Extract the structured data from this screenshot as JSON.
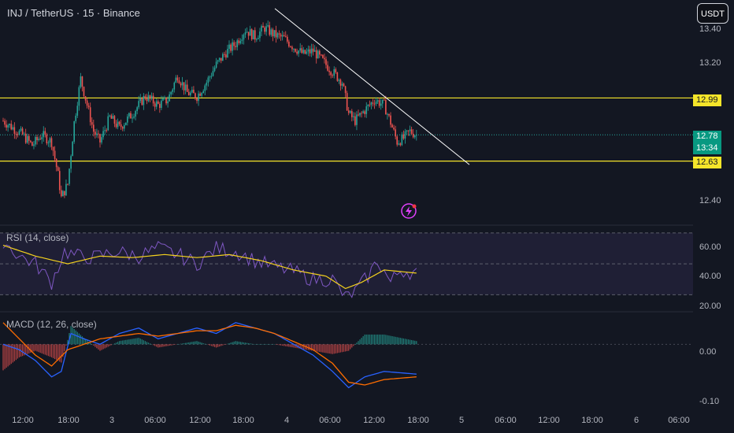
{
  "header": {
    "title": "INJ / TetherUS · 15 · Binance"
  },
  "currency_button": {
    "label": "USDT"
  },
  "price_axis": {
    "ticks": [
      "13.40",
      "13.20",
      "12.40"
    ]
  },
  "price_tags": {
    "resistance": "12.99",
    "last_price": "12.78",
    "countdown": "13:34",
    "support": "12.63"
  },
  "rsi_panel": {
    "label": "RSI (14, close)",
    "ticks": [
      "60.00",
      "40.00",
      "20.00"
    ]
  },
  "macd_panel": {
    "label": "MACD (12, 26, close)",
    "ticks": [
      "0.00",
      "-0.10"
    ]
  },
  "time_axis": {
    "ticks": [
      "12:00",
      "18:00",
      "3",
      "06:00",
      "12:00",
      "18:00",
      "4",
      "06:00",
      "12:00",
      "18:00",
      "5",
      "06:00",
      "12:00",
      "18:00",
      "6",
      "06:00"
    ]
  },
  "colors": {
    "background": "#131722",
    "up_candle": "#26a69a",
    "down_candle": "#ef5350",
    "horizontal_line": "#f5e52a",
    "trendline": "#ffffff",
    "rsi_line": "#7e57c2",
    "rsi_ma": "#f5d21e",
    "macd_line": "#2962ff",
    "signal_line": "#ff6d00"
  },
  "chart_data": {
    "type": "candlestick",
    "symbol": "INJ / TetherUS",
    "interval": "15",
    "exchange": "Binance",
    "horizontal_levels": [
      12.99,
      12.63
    ],
    "last_price": 12.78,
    "price_range": [
      12.35,
      13.45
    ],
    "trendline": {
      "from": {
        "time_index": 0,
        "price": 13.5
      },
      "to": {
        "time_index": 1,
        "price": 12.61
      }
    },
    "price_path": [
      [
        0,
        12.86
      ],
      [
        6,
        12.82
      ],
      [
        12,
        12.78
      ],
      [
        18,
        12.72
      ],
      [
        24,
        12.78
      ],
      [
        30,
        12.74
      ],
      [
        34,
        12.55
      ],
      [
        36,
        12.42
      ],
      [
        40,
        12.5
      ],
      [
        44,
        12.85
      ],
      [
        48,
        13.1
      ],
      [
        52,
        12.95
      ],
      [
        56,
        12.8
      ],
      [
        60,
        12.74
      ],
      [
        66,
        12.88
      ],
      [
        72,
        12.82
      ],
      [
        80,
        12.9
      ],
      [
        88,
        13.0
      ],
      [
        96,
        12.95
      ],
      [
        102,
        12.98
      ],
      [
        108,
        13.12
      ],
      [
        114,
        13.02
      ],
      [
        120,
        13.0
      ],
      [
        126,
        13.08
      ],
      [
        132,
        13.18
      ],
      [
        138,
        13.25
      ],
      [
        144,
        13.3
      ],
      [
        150,
        13.38
      ],
      [
        156,
        13.34
      ],
      [
        162,
        13.39
      ],
      [
        168,
        13.35
      ],
      [
        174,
        13.33
      ],
      [
        180,
        13.28
      ],
      [
        186,
        13.24
      ],
      [
        192,
        13.26
      ],
      [
        198,
        13.2
      ],
      [
        204,
        13.14
      ],
      [
        210,
        13.08
      ],
      [
        214,
        12.9
      ],
      [
        218,
        12.86
      ],
      [
        224,
        12.92
      ],
      [
        230,
        12.98
      ],
      [
        236,
        12.95
      ],
      [
        240,
        12.85
      ],
      [
        244,
        12.74
      ],
      [
        248,
        12.76
      ],
      [
        252,
        12.8
      ],
      [
        256,
        12.78
      ]
    ],
    "rsi": {
      "overbought": 70,
      "oversold": 30,
      "middle": 50,
      "range": [
        20,
        75
      ],
      "rsi_path": [
        [
          0,
          65
        ],
        [
          10,
          55
        ],
        [
          20,
          50
        ],
        [
          30,
          38
        ],
        [
          38,
          58
        ],
        [
          46,
          55
        ],
        [
          56,
          54
        ],
        [
          70,
          58
        ],
        [
          84,
          55
        ],
        [
          96,
          60
        ],
        [
          108,
          56
        ],
        [
          120,
          50
        ],
        [
          132,
          60
        ],
        [
          144,
          58
        ],
        [
          156,
          52
        ],
        [
          168,
          48
        ],
        [
          180,
          45
        ],
        [
          192,
          40
        ],
        [
          204,
          40
        ],
        [
          212,
          28
        ],
        [
          218,
          32
        ],
        [
          226,
          42
        ],
        [
          232,
          52
        ],
        [
          240,
          38
        ],
        [
          246,
          46
        ],
        [
          256,
          44
        ]
      ],
      "ma_path": [
        [
          0,
          62
        ],
        [
          20,
          55
        ],
        [
          40,
          50
        ],
        [
          60,
          55
        ],
        [
          80,
          54
        ],
        [
          100,
          56
        ],
        [
          120,
          54
        ],
        [
          140,
          56
        ],
        [
          160,
          52
        ],
        [
          180,
          46
        ],
        [
          200,
          42
        ],
        [
          212,
          34
        ],
        [
          222,
          38
        ],
        [
          236,
          46
        ],
        [
          256,
          44
        ]
      ]
    },
    "macd": {
      "range": [
        -0.12,
        0.06
      ],
      "macd_path": [
        [
          0,
          0.0
        ],
        [
          10,
          -0.01
        ],
        [
          20,
          -0.03
        ],
        [
          30,
          -0.06
        ],
        [
          36,
          -0.05
        ],
        [
          42,
          0.02
        ],
        [
          50,
          0.01
        ],
        [
          60,
          0.0
        ],
        [
          72,
          0.02
        ],
        [
          84,
          0.03
        ],
        [
          96,
          0.01
        ],
        [
          108,
          0.02
        ],
        [
          120,
          0.03
        ],
        [
          132,
          0.02
        ],
        [
          144,
          0.04
        ],
        [
          156,
          0.03
        ],
        [
          168,
          0.02
        ],
        [
          180,
          0.0
        ],
        [
          192,
          -0.02
        ],
        [
          204,
          -0.05
        ],
        [
          214,
          -0.08
        ],
        [
          224,
          -0.06
        ],
        [
          236,
          -0.05
        ],
        [
          256,
          -0.055
        ]
      ],
      "signal_path": [
        [
          0,
          0.04
        ],
        [
          10,
          0.01
        ],
        [
          20,
          -0.02
        ],
        [
          30,
          -0.04
        ],
        [
          40,
          -0.01
        ],
        [
          50,
          0.0
        ],
        [
          60,
          0.01
        ],
        [
          72,
          0.015
        ],
        [
          84,
          0.02
        ],
        [
          96,
          0.015
        ],
        [
          108,
          0.02
        ],
        [
          120,
          0.025
        ],
        [
          132,
          0.025
        ],
        [
          144,
          0.035
        ],
        [
          156,
          0.03
        ],
        [
          168,
          0.02
        ],
        [
          180,
          0.005
        ],
        [
          192,
          -0.01
        ],
        [
          204,
          -0.035
        ],
        [
          214,
          -0.07
        ],
        [
          224,
          -0.075
        ],
        [
          236,
          -0.065
        ],
        [
          256,
          -0.06
        ]
      ]
    }
  }
}
